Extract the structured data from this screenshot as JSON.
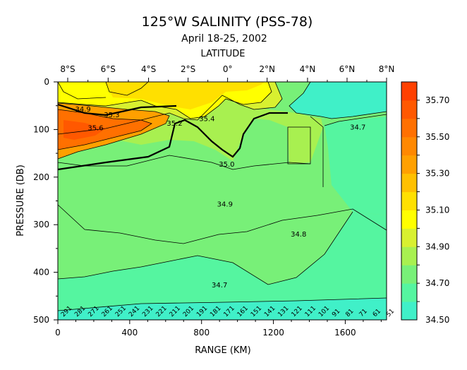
{
  "chart_data": {
    "type": "heatmap",
    "title": "125°W SALINITY (PSS-78)",
    "subtitle": "April 18-25, 2002",
    "top_axis_title": "LATITUDE",
    "xlabel": "RANGE (KM)",
    "ylabel": "PRESSURE (DB)",
    "xlim": [
      0,
      1830
    ],
    "ylim": [
      0,
      500
    ],
    "y_inverted": true,
    "x_ticks": [
      0,
      400,
      800,
      1200,
      1600
    ],
    "y_ticks": [
      0,
      100,
      200,
      300,
      400,
      500
    ],
    "latitude_ticks": [
      {
        "label": "8°S",
        "km": 55
      },
      {
        "label": "6°S",
        "km": 280
      },
      {
        "label": "4°S",
        "km": 505
      },
      {
        "label": "2°S",
        "km": 725
      },
      {
        "label": "0°",
        "km": 945
      },
      {
        "label": "2°N",
        "km": 1165
      },
      {
        "label": "4°N",
        "km": 1390
      },
      {
        "label": "6°N",
        "km": 1610
      },
      {
        "label": "8°N",
        "km": 1830
      }
    ],
    "colorbar": {
      "min": 34.5,
      "max": 35.8,
      "step": 0.1,
      "labels": [
        "35.70",
        "35.50",
        "35.30",
        "35.10",
        "34.90",
        "34.70",
        "34.50"
      ],
      "colors": [
        "#40f0c8",
        "#55f5a0",
        "#78f078",
        "#a8f050",
        "#d8f030",
        "#ffff00",
        "#ffe000",
        "#ffc000",
        "#ffa000",
        "#ff8800",
        "#ff7000",
        "#ff5800",
        "#ff4000"
      ]
    },
    "contour_labels": [
      {
        "text": "34.9",
        "x": 140,
        "y": 62
      },
      {
        "text": "35.3",
        "x": 300,
        "y": 74
      },
      {
        "text": "35.2",
        "x": 650,
        "y": 92
      },
      {
        "text": "35.6",
        "x": 210,
        "y": 102
      },
      {
        "text": "35.4",
        "x": 830,
        "y": 82
      },
      {
        "text": "35.0",
        "x": 940,
        "y": 178
      },
      {
        "text": "34.7",
        "x": 1670,
        "y": 100
      },
      {
        "text": "34.9",
        "x": 930,
        "y": 262
      },
      {
        "text": "34.8",
        "x": 1340,
        "y": 325
      },
      {
        "text": "34.7",
        "x": 900,
        "y": 432
      }
    ],
    "stations": [
      "291",
      "281",
      "271",
      "261",
      "251",
      "241",
      "231",
      "221",
      "211",
      "201",
      "191",
      "181",
      "171",
      "161",
      "151",
      "141",
      "131",
      "121",
      "111",
      "101",
      "91",
      "81",
      "71",
      "61",
      "51"
    ]
  }
}
